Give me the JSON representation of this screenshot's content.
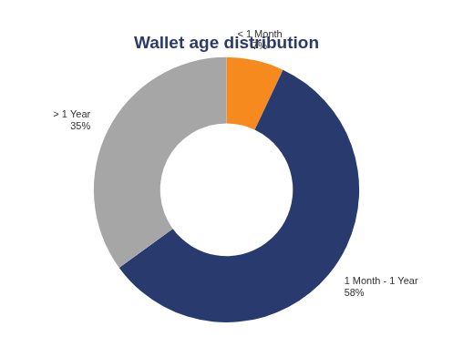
{
  "chart_data": {
    "type": "doughnut",
    "title": "Wallet age distribution",
    "categories": [
      "< 1 Month",
      "1 Month - 1 Year",
      "> 1 Year"
    ],
    "values": [
      7,
      58,
      35
    ],
    "value_labels": [
      "7%",
      "58%",
      "35%"
    ],
    "colors": [
      "#f78a1e",
      "#283a6e",
      "#a6a6a6"
    ],
    "data_labels": true
  }
}
